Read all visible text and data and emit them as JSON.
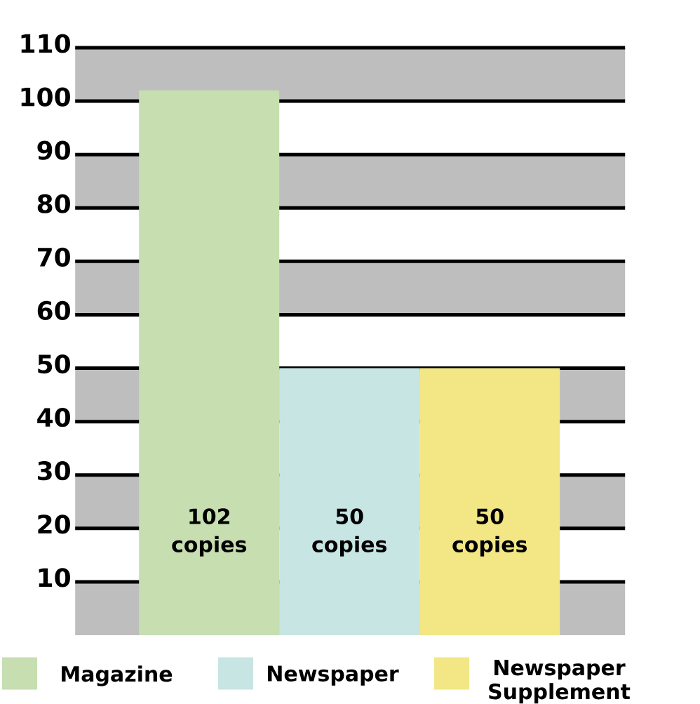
{
  "chart_data": {
    "type": "bar",
    "categories": [
      null,
      null,
      null
    ],
    "series": [
      {
        "name": "Magazine",
        "color": "#c6deb0",
        "values": [
          102,
          null,
          null
        ],
        "value_labels": [
          "102 copies",
          null,
          null
        ]
      },
      {
        "name": "Newspaper",
        "color": "#c7e5e3",
        "values": [
          null,
          50,
          null
        ],
        "value_labels": [
          null,
          "50 copies",
          null
        ]
      },
      {
        "name": "Newspaper Supplement",
        "color": "#f2e784",
        "values": [
          null,
          null,
          50
        ],
        "value_labels": [
          null,
          null,
          "50 copies"
        ]
      }
    ],
    "ylim": [
      0,
      110
    ],
    "yticks": [
      10,
      20,
      30,
      40,
      50,
      60,
      70,
      80,
      90,
      100,
      110
    ],
    "grid": "y",
    "bands": [
      {
        "axis": "y",
        "from": 0,
        "to": 10,
        "color": "#bebebe"
      },
      {
        "axis": "y",
        "from": 20,
        "to": 30,
        "color": "#bebebe"
      },
      {
        "axis": "y",
        "from": 40,
        "to": 50,
        "color": "#bebebe"
      },
      {
        "axis": "y",
        "from": 60,
        "to": 70,
        "color": "#bebebe"
      },
      {
        "axis": "y",
        "from": 80,
        "to": 90,
        "color": "#bebebe"
      },
      {
        "axis": "y",
        "from": 100,
        "to": 110,
        "color": "#bebebe"
      }
    ],
    "legend": "bottom",
    "tick_labels": "y"
  }
}
